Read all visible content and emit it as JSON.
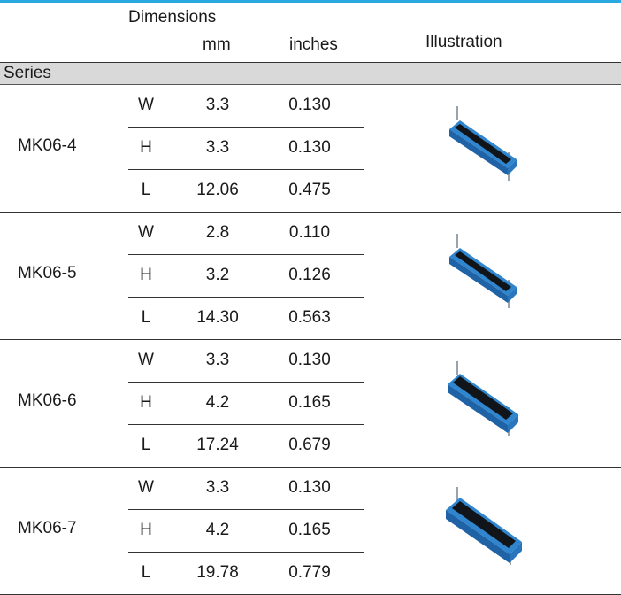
{
  "header": {
    "dimensions": "Dimensions",
    "mm": "mm",
    "inches": "inches",
    "illustration": "Illustration",
    "series": "Series"
  },
  "colors": {
    "accent_rule": "#29a9e0",
    "series_bar": "#d9d9d9",
    "component_blue": "#2f86cf"
  },
  "series": [
    {
      "name": "MK06-4",
      "illustration": "reed-switch-icon",
      "dims": [
        {
          "label": "W",
          "mm": "3.3",
          "in": "0.130"
        },
        {
          "label": "H",
          "mm": "3.3",
          "in": "0.130"
        },
        {
          "label": "L",
          "mm": "12.06",
          "in": "0.475"
        }
      ]
    },
    {
      "name": "MK06-5",
      "illustration": "reed-switch-icon",
      "dims": [
        {
          "label": "W",
          "mm": "2.8",
          "in": "0.110"
        },
        {
          "label": "H",
          "mm": "3.2",
          "in": "0.126"
        },
        {
          "label": "L",
          "mm": "14.30",
          "in": "0.563"
        }
      ]
    },
    {
      "name": "MK06-6",
      "illustration": "reed-switch-icon",
      "dims": [
        {
          "label": "W",
          "mm": "3.3",
          "in": "0.130"
        },
        {
          "label": "H",
          "mm": "4.2",
          "in": "0.165"
        },
        {
          "label": "L",
          "mm": "17.24",
          "in": "0.679"
        }
      ]
    },
    {
      "name": "MK06-7",
      "illustration": "reed-switch-icon",
      "dims": [
        {
          "label": "W",
          "mm": "3.3",
          "in": "0.130"
        },
        {
          "label": "H",
          "mm": "4.2",
          "in": "0.165"
        },
        {
          "label": "L",
          "mm": "19.78",
          "in": "0.779"
        }
      ]
    }
  ]
}
